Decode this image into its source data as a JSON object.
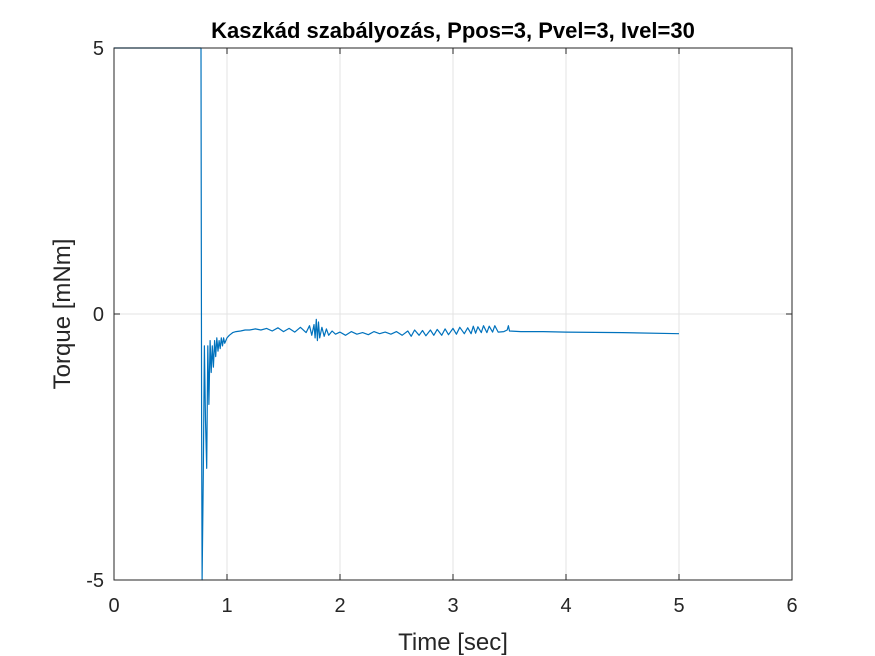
{
  "chart_data": {
    "type": "line",
    "title": "Kaszkád szabályozás, Ppos=3, Pvel=3, Ivel=30",
    "xlabel": "Time [sec]",
    "ylabel": "Torque [mNm]",
    "xlim": [
      0,
      6
    ],
    "ylim": [
      -5,
      5
    ],
    "xticks": [
      0,
      1,
      2,
      3,
      4,
      5,
      6
    ],
    "yticks": [
      -5,
      0,
      5
    ],
    "xtick_labels": [
      "0",
      "1",
      "2",
      "3",
      "4",
      "5",
      "6"
    ],
    "ytick_labels": [
      "-5",
      "0",
      "5"
    ],
    "grid": true,
    "line_color": "#0072BD",
    "series": [
      {
        "x": [
          0,
          0.05,
          0.77,
          0.775,
          0.78,
          0.79,
          0.8,
          0.81,
          0.82,
          0.83,
          0.84,
          0.85,
          0.86,
          0.87,
          0.88,
          0.89,
          0.9,
          0.91,
          0.92,
          0.93,
          0.94,
          0.95,
          0.96,
          0.97,
          0.98,
          1.0,
          1.02,
          1.05,
          1.08,
          1.12,
          1.16,
          1.2,
          1.25,
          1.3,
          1.35,
          1.4,
          1.45,
          1.5,
          1.55,
          1.6,
          1.65,
          1.7,
          1.73,
          1.75,
          1.77,
          1.78,
          1.79,
          1.8,
          1.81,
          1.82,
          1.84,
          1.86,
          1.88,
          1.9,
          1.93,
          1.96,
          2.0,
          2.05,
          2.1,
          2.15,
          2.2,
          2.25,
          2.3,
          2.35,
          2.4,
          2.45,
          2.5,
          2.55,
          2.6,
          2.63,
          2.66,
          2.7,
          2.73,
          2.76,
          2.8,
          2.83,
          2.86,
          2.9,
          2.93,
          2.96,
          3.0,
          3.03,
          3.06,
          3.1,
          3.13,
          3.16,
          3.18,
          3.2,
          3.22,
          3.25,
          3.27,
          3.3,
          3.32,
          3.35,
          3.37,
          3.4,
          3.45,
          3.48,
          3.49,
          3.5,
          3.6,
          3.8,
          4.0,
          4.5,
          5.0
        ],
        "y": [
          5,
          5,
          5,
          -2.0,
          -5.0,
          -3.0,
          -0.6,
          -2.0,
          -2.9,
          -0.6,
          -1.7,
          -0.5,
          -1.1,
          -0.6,
          -1.0,
          -0.5,
          -0.8,
          -0.45,
          -0.7,
          -0.5,
          -0.65,
          -0.45,
          -0.6,
          -0.45,
          -0.55,
          -0.45,
          -0.4,
          -0.35,
          -0.33,
          -0.32,
          -0.3,
          -0.3,
          -0.28,
          -0.3,
          -0.27,
          -0.32,
          -0.26,
          -0.33,
          -0.27,
          -0.34,
          -0.25,
          -0.35,
          -0.22,
          -0.4,
          -0.2,
          -0.45,
          -0.1,
          -0.5,
          -0.15,
          -0.45,
          -0.25,
          -0.42,
          -0.28,
          -0.4,
          -0.32,
          -0.38,
          -0.34,
          -0.4,
          -0.33,
          -0.38,
          -0.35,
          -0.39,
          -0.33,
          -0.37,
          -0.34,
          -0.38,
          -0.33,
          -0.4,
          -0.32,
          -0.42,
          -0.3,
          -0.4,
          -0.31,
          -0.41,
          -0.3,
          -0.4,
          -0.29,
          -0.4,
          -0.28,
          -0.39,
          -0.27,
          -0.38,
          -0.25,
          -0.37,
          -0.26,
          -0.37,
          -0.23,
          -0.36,
          -0.24,
          -0.35,
          -0.22,
          -0.35,
          -0.23,
          -0.34,
          -0.22,
          -0.34,
          -0.33,
          -0.3,
          -0.22,
          -0.32,
          -0.33,
          -0.33,
          -0.34,
          -0.35,
          -0.37
        ]
      }
    ]
  }
}
